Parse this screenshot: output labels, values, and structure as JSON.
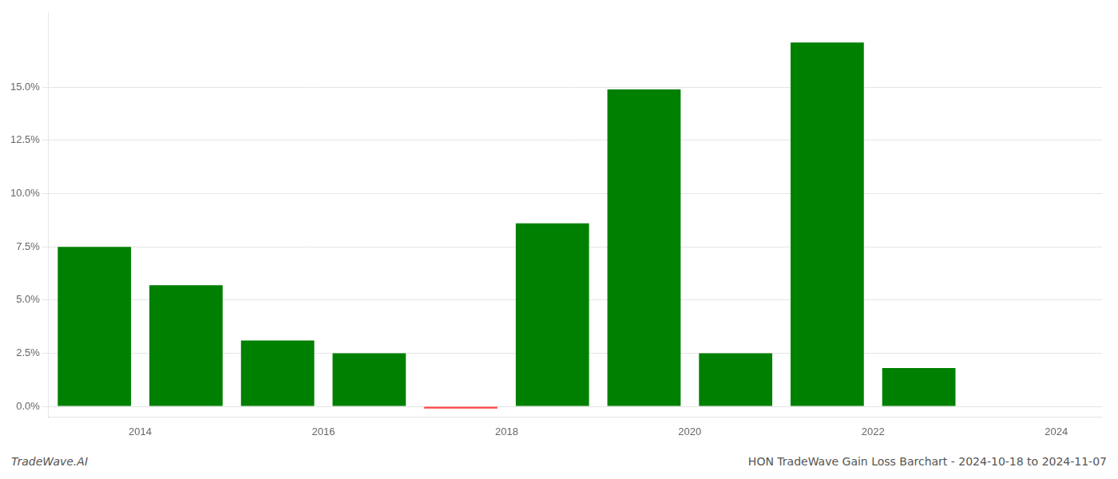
{
  "chart_data": {
    "type": "bar",
    "x": [
      2013.5,
      2014.5,
      2015.5,
      2016.5,
      2017.5,
      2018.5,
      2019.5,
      2020.5,
      2021.5,
      2022.5,
      2023.5
    ],
    "values": [
      0.075,
      0.057,
      0.031,
      0.025,
      -0.001,
      0.086,
      0.149,
      0.025,
      0.171,
      0.018,
      0.0
    ],
    "colors": [
      "#008000",
      "#008000",
      "#008000",
      "#008000",
      "#ff4444",
      "#008000",
      "#008000",
      "#008000",
      "#008000",
      "#008000",
      "#008000"
    ],
    "xlim": [
      2013.0,
      2024.5
    ],
    "xticks": [
      2014,
      2016,
      2018,
      2020,
      2022,
      2024
    ],
    "ylim": [
      -0.005,
      0.185
    ],
    "yticks": [
      {
        "value": 0.0,
        "label": "0.0%"
      },
      {
        "value": 0.025,
        "label": "2.5%"
      },
      {
        "value": 0.05,
        "label": "5.0%"
      },
      {
        "value": 0.075,
        "label": "7.5%"
      },
      {
        "value": 0.1,
        "label": "10.0%"
      },
      {
        "value": 0.125,
        "label": "12.5%"
      },
      {
        "value": 0.15,
        "label": "15.0%"
      }
    ],
    "grid": true,
    "annotations": [
      "TradeWave.AI",
      "HON TradeWave Gain Loss Barchart - 2024-10-18 to 2024-11-07"
    ]
  }
}
